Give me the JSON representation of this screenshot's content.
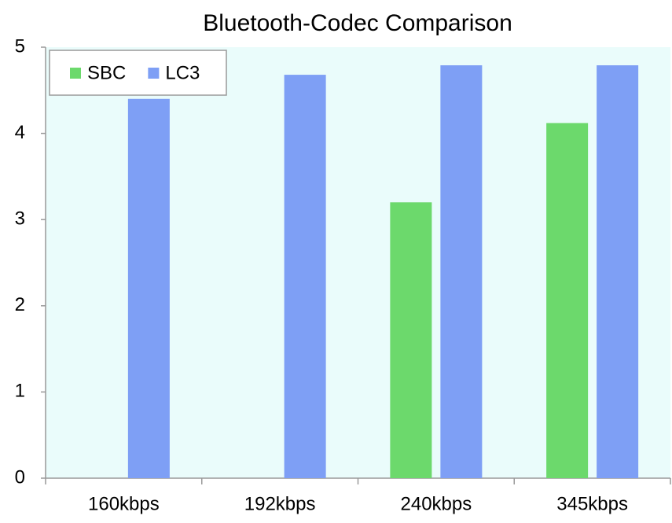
{
  "chart_data": {
    "type": "bar",
    "title": "Bluetooth-Codec Comparison",
    "categories": [
      "160kbps",
      "192kbps",
      "240kbps",
      "345kbps"
    ],
    "series": [
      {
        "name": "SBC",
        "color": "#6cd96c",
        "values": [
          null,
          null,
          3.2,
          4.12
        ]
      },
      {
        "name": "LC3",
        "color": "#7e9ff5",
        "values": [
          4.4,
          4.68,
          4.79,
          4.79
        ]
      }
    ],
    "ylim": [
      0,
      5
    ],
    "yticks": [
      0,
      1,
      2,
      3,
      4,
      5
    ],
    "grid": false,
    "legend": "upper-left"
  }
}
